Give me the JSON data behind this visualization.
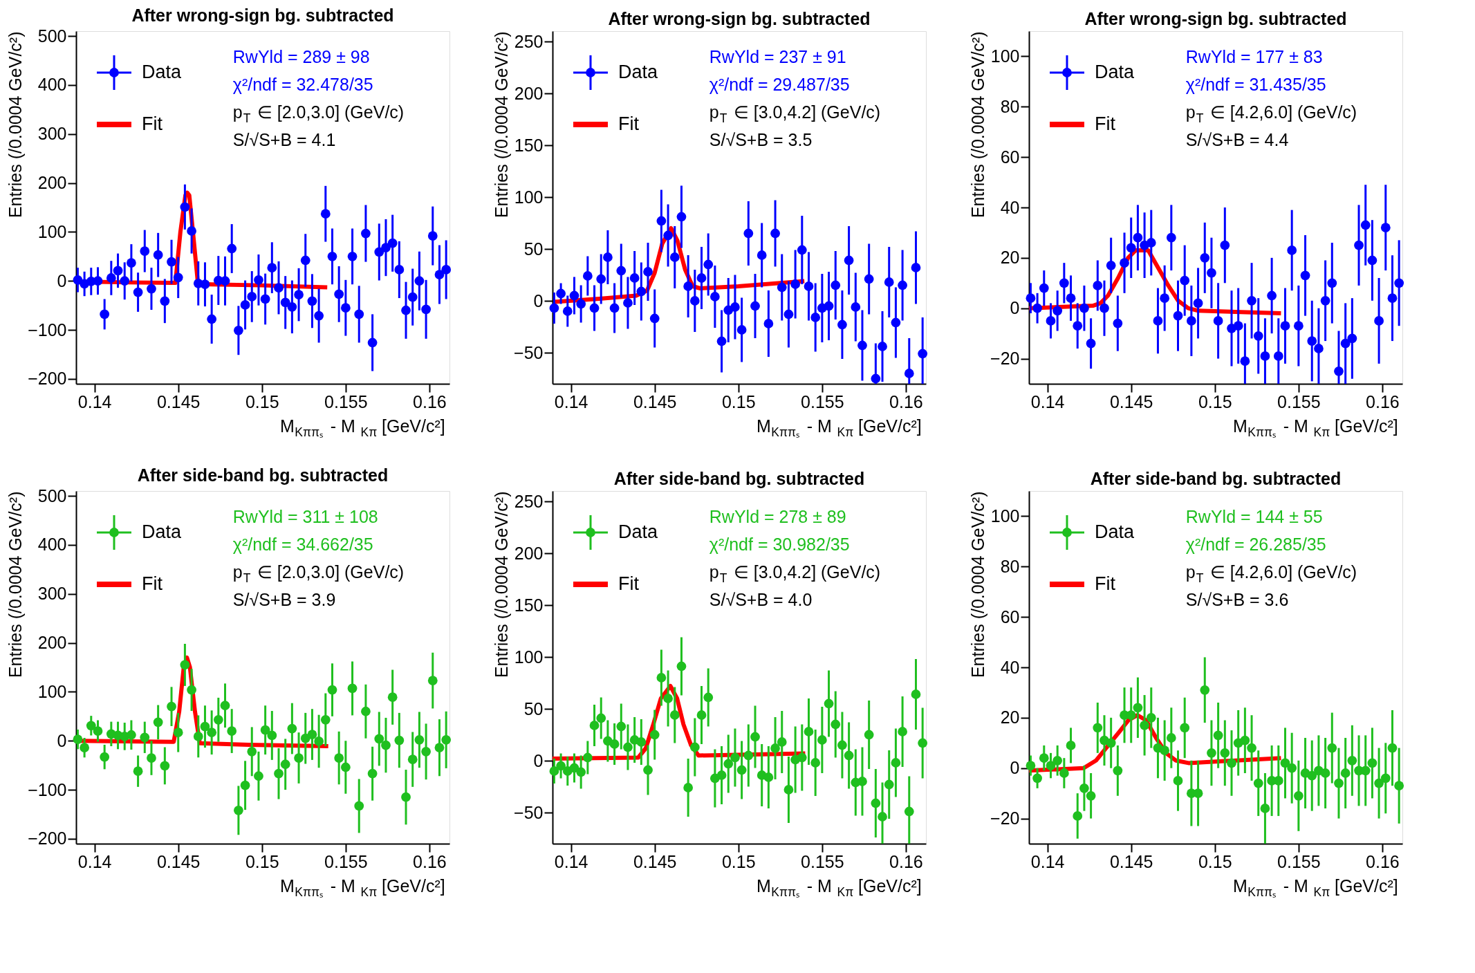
{
  "chart_data": [
    {
      "type": "scatter",
      "title": "After wrong-sign bg. subtracted",
      "xlabel": "M$_{Kππₛ}$ - M$_{Kπ}$ [GeV/c²]",
      "ylabel": "Entries (/0.0004 GeV/c²)",
      "legend": "top left",
      "grid": false,
      "xlim": [
        0.1389,
        0.1612
      ],
      "ylim": [
        -210,
        510
      ],
      "xticks": [
        0.14,
        0.145,
        0.15,
        0.155,
        0.16
      ],
      "yticks": [
        -200,
        -100,
        0,
        100,
        200,
        300,
        400,
        500
      ],
      "x": [
        0.139,
        0.1394,
        0.1398,
        0.1402,
        0.1406,
        0.141,
        0.1414,
        0.1418,
        0.1422,
        0.1426,
        0.143,
        0.1434,
        0.1438,
        0.1442,
        0.1446,
        0.145,
        0.1454,
        0.1458,
        0.1462,
        0.1466,
        0.147,
        0.1474,
        0.1478,
        0.1482,
        0.1486,
        0.149,
        0.1494,
        0.1498,
        0.1502,
        0.1506,
        0.151,
        0.1514,
        0.1518,
        0.1522,
        0.1526,
        0.153,
        0.1534,
        0.1538,
        0.1542,
        0.1546,
        0.155,
        0.1554,
        0.1558,
        0.1562,
        0.1566,
        0.157,
        0.1574,
        0.1578,
        0.1582,
        0.1586,
        0.159,
        0.1594,
        0.1598,
        0.1602,
        0.1606,
        0.161
      ],
      "series": [
        {
          "name": "Data",
          "type": "scatter",
          "marker": "circle",
          "color": "#0000ff",
          "values": [
            2,
            -6,
            -1,
            0,
            -68,
            6,
            21,
            0,
            37,
            -23,
            61,
            -16,
            53,
            -41,
            39,
            7,
            151,
            102,
            -5,
            -7,
            -78,
            1,
            0,
            66,
            -101,
            -49,
            -32,
            2,
            -37,
            27,
            -14,
            -44,
            -53,
            -28,
            42,
            -41,
            -71,
            137,
            50,
            -27,
            -55,
            50,
            -68,
            97,
            -126,
            59,
            68,
            77,
            23,
            -60,
            -33,
            0,
            -58,
            92,
            13,
            23
          ],
          "errors": [
            25,
            25,
            28,
            28,
            31,
            35,
            35,
            38,
            38,
            40,
            43,
            43,
            45,
            45,
            45,
            42,
            46,
            46,
            45,
            45,
            50,
            50,
            50,
            50,
            50,
            50,
            52,
            52,
            52,
            52,
            54,
            54,
            54,
            54,
            54,
            55,
            55,
            57,
            57,
            57,
            57,
            57,
            58,
            58,
            58,
            58,
            58,
            58,
            58,
            58,
            58,
            60,
            60,
            60,
            60,
            60
          ]
        },
        {
          "name": "Fit",
          "type": "line",
          "color": "#ff0000",
          "x": [
            0.1389,
            0.142,
            0.1446,
            0.14483,
            0.14513,
            0.14543,
            0.14554,
            0.14566,
            0.14588,
            0.14618,
            0.147,
            0.15,
            0.1539
          ],
          "values": [
            -1,
            -3,
            -4,
            -4,
            100,
            175,
            180,
            175,
            100,
            -6,
            -7,
            -9,
            -13
          ]
        }
      ],
      "annotations": [
        "RwYld = 289 ± 98",
        "χ²/ndf = 32.478/35",
        "p$_{T}$ ∈ [2.0,3.0] (GeV/c)",
        "S/√S+B = 4.1"
      ]
    },
    {
      "type": "scatter",
      "title": "After wrong-sign bg. subtracted",
      "xlabel": "M$_{Kππₛ}$ - M$_{Kπ}$ [GeV/c²]",
      "ylabel": "Entries (/0.0004 GeV/c²)",
      "legend": "top left",
      "grid": false,
      "xlim": [
        0.1389,
        0.1612
      ],
      "ylim": [
        -80,
        260
      ],
      "xticks": [
        0.14,
        0.145,
        0.15,
        0.155,
        0.16
      ],
      "yticks": [
        -50,
        0,
        50,
        100,
        150,
        200,
        250
      ],
      "x": [
        0.139,
        0.1394,
        0.1398,
        0.1402,
        0.1406,
        0.141,
        0.1414,
        0.1418,
        0.1422,
        0.1426,
        0.143,
        0.1434,
        0.1438,
        0.1442,
        0.1446,
        0.145,
        0.1454,
        0.1458,
        0.1462,
        0.1466,
        0.147,
        0.1474,
        0.1478,
        0.1482,
        0.1486,
        0.149,
        0.1494,
        0.1498,
        0.1502,
        0.1506,
        0.151,
        0.1514,
        0.1518,
        0.1522,
        0.1526,
        0.153,
        0.1534,
        0.1538,
        0.1542,
        0.1546,
        0.155,
        0.1554,
        0.1558,
        0.1562,
        0.1566,
        0.157,
        0.1574,
        0.1578,
        0.1582,
        0.1586,
        0.159,
        0.1594,
        0.1598,
        0.1602,
        0.1606,
        0.161
      ],
      "series": [
        {
          "name": "Data",
          "type": "scatter",
          "marker": "circle",
          "color": "#0000ff",
          "values": [
            -7,
            7,
            -10,
            5,
            -3,
            24,
            -7,
            21,
            42,
            -7,
            29,
            -2,
            22,
            9,
            28,
            -17,
            77,
            63,
            42,
            81,
            14,
            0,
            22,
            35,
            4,
            -39,
            -9,
            -6,
            -28,
            65,
            -5,
            44,
            -22,
            65,
            13,
            -13,
            16,
            49,
            14,
            -16,
            -7,
            -5,
            15,
            -23,
            39,
            -6,
            -43,
            21,
            -75,
            -44,
            18,
            -21,
            15,
            -70,
            32,
            -51
          ],
          "errors": [
            15,
            10,
            15,
            18,
            18,
            19,
            22,
            24,
            26,
            24,
            26,
            25,
            26,
            28,
            28,
            28,
            30,
            30,
            30,
            30,
            30,
            30,
            30,
            30,
            30,
            30,
            31,
            31,
            31,
            31,
            31,
            31,
            32,
            32,
            32,
            32,
            33,
            33,
            33,
            33,
            33,
            33,
            33,
            33,
            33,
            33,
            34,
            34,
            [
              -80,
              -41
            ],
            34,
            34,
            34,
            34,
            [
              -80,
              -36
            ],
            35,
            [
              -80,
              -16
            ]
          ]
        },
        {
          "name": "Fit",
          "type": "line",
          "color": "#ff0000",
          "x": [
            0.139,
            0.1417,
            0.1439,
            0.14455,
            0.145,
            0.14545,
            0.14598,
            0.14636,
            0.14682,
            0.14727,
            0.14773,
            0.15,
            0.15394
          ],
          "values": [
            -1,
            2,
            5,
            10,
            27,
            55,
            70,
            58,
            30,
            14,
            12,
            14,
            19
          ]
        }
      ],
      "annotations": [
        "RwYld = 237 ± 91",
        "χ²/ndf = 29.487/35",
        "p$_{T}$ ∈ [3.0,4.2] (GeV/c)",
        "S/√S+B = 3.5"
      ]
    },
    {
      "type": "scatter",
      "title": "After wrong-sign bg. subtracted",
      "xlabel": "M$_{Kππₛ}$ - M$_{Kπ}$ [GeV/c²]",
      "ylabel": "Entries (/0.0004 GeV/c²)",
      "legend": "top left",
      "grid": false,
      "xlim": [
        0.1389,
        0.1612
      ],
      "ylim": [
        -30,
        110
      ],
      "xticks": [
        0.14,
        0.145,
        0.15,
        0.155,
        0.16
      ],
      "yticks": [
        -20,
        0,
        20,
        40,
        60,
        80,
        100
      ],
      "x": [
        0.139,
        0.1394,
        0.1398,
        0.1402,
        0.1406,
        0.141,
        0.1414,
        0.1418,
        0.1422,
        0.1426,
        0.143,
        0.1434,
        0.1438,
        0.1442,
        0.1446,
        0.145,
        0.1454,
        0.1458,
        0.1462,
        0.1466,
        0.147,
        0.1474,
        0.1478,
        0.1482,
        0.1486,
        0.149,
        0.1494,
        0.1498,
        0.1502,
        0.1506,
        0.151,
        0.1514,
        0.1518,
        0.1522,
        0.1526,
        0.153,
        0.1534,
        0.1538,
        0.1542,
        0.1546,
        0.155,
        0.1554,
        0.1558,
        0.1562,
        0.1566,
        0.157,
        0.1574,
        0.1578,
        0.1582,
        0.1586,
        0.159,
        0.1594,
        0.1598,
        0.1602,
        0.1606,
        0.161
      ],
      "series": [
        {
          "name": "Data",
          "type": "scatter",
          "marker": "circle",
          "color": "#0000ff",
          "values": [
            4,
            0,
            8,
            -5,
            -1,
            10,
            4,
            -7,
            0,
            -14,
            9,
            0,
            17,
            -6,
            18,
            24,
            28,
            25,
            26,
            -5,
            4,
            28,
            -3,
            11,
            -5,
            2,
            20,
            14,
            -5,
            25,
            -8,
            -7,
            -21,
            3,
            -11,
            -19,
            5,
            -19,
            -7,
            23,
            -7,
            13,
            -13,
            -16,
            3,
            10,
            -25,
            -14,
            -12,
            25,
            33,
            19,
            -5,
            32,
            4,
            10
          ],
          "errors": [
            6,
            6,
            7,
            7,
            8,
            8,
            9,
            9,
            9,
            10,
            10,
            11,
            11,
            11,
            12,
            12,
            13,
            13,
            13,
            13,
            13,
            13,
            14,
            14,
            14,
            14,
            14,
            14,
            15,
            15,
            15,
            15,
            [
              -30,
              -6
            ],
            15,
            15,
            [
              -30,
              -4
            ],
            15,
            [
              -30,
              -4
            ],
            15,
            16,
            16,
            16,
            16,
            [
              -30,
              0
            ],
            16,
            16,
            [
              -30,
              -9
            ],
            16,
            16,
            16,
            16,
            16,
            17,
            17,
            17,
            17
          ]
        },
        {
          "name": "Fit",
          "type": "line",
          "color": "#ff0000",
          "x": [
            0.1389,
            0.14272,
            0.14317,
            0.14362,
            0.14422,
            0.14482,
            0.14527,
            0.14602,
            0.14662,
            0.14722,
            0.14781,
            0.14841,
            0.14901,
            0.15395
          ],
          "values": [
            0,
            1,
            2,
            5,
            12,
            20,
            23,
            23,
            16,
            9,
            3,
            0,
            -1,
            -2
          ]
        }
      ],
      "annotations": [
        "RwYld = 177 ± 83",
        "χ²/ndf = 31.435/35",
        "p$_{T}$ ∈ [4.2,6.0] (GeV/c)",
        "S/√S+B = 4.4"
      ]
    },
    {
      "type": "scatter",
      "title": "After side-band bg. subtracted",
      "xlabel": "M$_{Kππₛ}$ - M$_{Kπ}$ [GeV/c²]",
      "ylabel": "Entries (/0.0004 GeV/c²)",
      "legend": "top left",
      "grid": false,
      "xlim": [
        0.1389,
        0.1612
      ],
      "ylim": [
        -210,
        510
      ],
      "xticks": [
        0.14,
        0.145,
        0.15,
        0.155,
        0.16
      ],
      "yticks": [
        -200,
        -100,
        0,
        100,
        200,
        300,
        400,
        500
      ],
      "x": [
        0.139,
        0.1394,
        0.1398,
        0.1402,
        0.1406,
        0.141,
        0.1414,
        0.1418,
        0.1422,
        0.1426,
        0.143,
        0.1434,
        0.1438,
        0.1442,
        0.1446,
        0.145,
        0.1454,
        0.1458,
        0.1462,
        0.1466,
        0.147,
        0.1474,
        0.1478,
        0.1482,
        0.1486,
        0.149,
        0.1494,
        0.1498,
        0.1502,
        0.1506,
        0.151,
        0.1514,
        0.1518,
        0.1522,
        0.1526,
        0.153,
        0.1534,
        0.1538,
        0.1542,
        0.1546,
        0.155,
        0.1554,
        0.1558,
        0.1562,
        0.1566,
        0.157,
        0.1574,
        0.1578,
        0.1582,
        0.1586,
        0.159,
        0.1594,
        0.1598,
        0.1602,
        0.1606,
        0.161
      ],
      "series": [
        {
          "name": "Data",
          "type": "scatter",
          "marker": "circle",
          "color": "#1fbf1f",
          "values": [
            3,
            -14,
            31,
            20,
            -33,
            14,
            11,
            9,
            12,
            -62,
            7,
            -35,
            38,
            -51,
            70,
            17,
            155,
            104,
            9,
            29,
            17,
            43,
            72,
            20,
            -142,
            -91,
            -22,
            -72,
            22,
            11,
            -67,
            -48,
            25,
            -35,
            5,
            13,
            -1,
            43,
            104,
            -35,
            -54,
            107,
            -133,
            60,
            -67,
            4,
            -9,
            89,
            1,
            -115,
            -38,
            2,
            -22,
            123,
            -14,
            2
          ],
          "errors": [
            20,
            20,
            20,
            22,
            25,
            25,
            28,
            28,
            30,
            32,
            32,
            35,
            35,
            38,
            40,
            40,
            43,
            43,
            43,
            43,
            45,
            45,
            45,
            45,
            50,
            50,
            50,
            50,
            50,
            50,
            52,
            52,
            52,
            52,
            52,
            52,
            54,
            54,
            54,
            54,
            54,
            55,
            55,
            55,
            55,
            55,
            56,
            56,
            56,
            56,
            56,
            57,
            57,
            57,
            58,
            58
          ]
        },
        {
          "name": "Fit",
          "type": "line",
          "color": "#ff0000",
          "x": [
            0.1389,
            0.14473,
            0.14506,
            0.14533,
            0.14552,
            0.1457,
            0.146,
            0.14629,
            0.1492,
            0.15396
          ],
          "values": [
            0,
            -2,
            60,
            150,
            170,
            150,
            60,
            -5,
            -8,
            -11
          ]
        }
      ],
      "annotations": [
        "RwYld = 311 ± 108",
        "χ²/ndf = 34.662/35",
        "p$_{T}$ ∈ [2.0,3.0] (GeV/c)",
        "S/√S+B = 3.9"
      ]
    },
    {
      "type": "scatter",
      "title": "After side-band bg. subtracted",
      "xlabel": "M$_{Kππₛ}$ - M$_{Kπ}$ [GeV/c²]",
      "ylabel": "Entries (/0.0004 GeV/c²)",
      "legend": "top left",
      "grid": false,
      "xlim": [
        0.1389,
        0.1612
      ],
      "ylim": [
        -80,
        260
      ],
      "xticks": [
        0.14,
        0.145,
        0.15,
        0.155,
        0.16
      ],
      "yticks": [
        -50,
        0,
        50,
        100,
        150,
        200,
        250
      ],
      "x": [
        0.139,
        0.1394,
        0.1398,
        0.1402,
        0.1406,
        0.141,
        0.1414,
        0.1418,
        0.1422,
        0.1426,
        0.143,
        0.1434,
        0.1438,
        0.1442,
        0.1446,
        0.145,
        0.1454,
        0.1458,
        0.1462,
        0.1466,
        0.147,
        0.1474,
        0.1478,
        0.1482,
        0.1486,
        0.149,
        0.1494,
        0.1498,
        0.1502,
        0.1506,
        0.151,
        0.1514,
        0.1518,
        0.1522,
        0.1526,
        0.153,
        0.1534,
        0.1538,
        0.1542,
        0.1546,
        0.155,
        0.1554,
        0.1558,
        0.1562,
        0.1566,
        0.157,
        0.1574,
        0.1578,
        0.1582,
        0.1586,
        0.159,
        0.1594,
        0.1598,
        0.1602,
        0.1606,
        0.161
      ],
      "series": [
        {
          "name": "Data",
          "type": "scatter",
          "marker": "circle",
          "color": "#1fbf1f",
          "values": [
            -10,
            -5,
            -10,
            -7,
            -11,
            3,
            34,
            41,
            19,
            16,
            33,
            13,
            20,
            18,
            -9,
            25,
            80,
            60,
            44,
            91,
            -26,
            13,
            44,
            61,
            -17,
            -14,
            -3,
            3,
            -9,
            5,
            23,
            -14,
            -16,
            12,
            18,
            -28,
            1,
            3,
            28,
            -2,
            20,
            55,
            35,
            15,
            5,
            -21,
            -20,
            25,
            -41,
            -54,
            -23,
            -2,
            28,
            -49,
            64,
            17
          ],
          "errors": [
            12,
            12,
            14,
            14,
            16,
            16,
            20,
            20,
            20,
            20,
            22,
            22,
            22,
            22,
            24,
            24,
            27,
            27,
            27,
            28,
            28,
            28,
            28,
            28,
            28,
            28,
            28,
            28,
            28,
            30,
            30,
            30,
            30,
            30,
            30,
            32,
            32,
            32,
            32,
            32,
            32,
            32,
            32,
            32,
            32,
            32,
            33,
            33,
            33,
            [
              -80,
              -21
            ],
            33,
            33,
            34,
            [
              -80,
              -15
            ],
            34,
            34
          ]
        },
        {
          "name": "Fit",
          "type": "line",
          "color": "#ff0000",
          "x": [
            0.1389,
            0.14402,
            0.14447,
            0.14492,
            0.14537,
            0.14594,
            0.14634,
            0.14672,
            0.14717,
            0.14762,
            0.15399
          ],
          "values": [
            2,
            3,
            12,
            35,
            60,
            72,
            60,
            35,
            15,
            5,
            7
          ]
        }
      ],
      "annotations": [
        "RwYld = 278 ± 89",
        "χ²/ndf = 30.982/35",
        "p$_{T}$ ∈ [3.0,4.2] (GeV/c)",
        "S/√S+B = 4.0"
      ]
    },
    {
      "type": "scatter",
      "title": "After side-band bg. subtracted",
      "xlabel": "M$_{Kππₛ}$ - M$_{Kπ}$ [GeV/c²]",
      "ylabel": "Entries (/0.0004 GeV/c²)",
      "legend": "top left",
      "grid": false,
      "xlim": [
        0.1389,
        0.1612
      ],
      "ylim": [
        -30,
        110
      ],
      "xticks": [
        0.14,
        0.145,
        0.15,
        0.155,
        0.16
      ],
      "yticks": [
        -20,
        0,
        20,
        40,
        60,
        80,
        100
      ],
      "x": [
        0.139,
        0.1394,
        0.1398,
        0.1402,
        0.1406,
        0.141,
        0.1414,
        0.1418,
        0.1422,
        0.1426,
        0.143,
        0.1434,
        0.1438,
        0.1442,
        0.1446,
        0.145,
        0.1454,
        0.1458,
        0.1462,
        0.1466,
        0.147,
        0.1474,
        0.1478,
        0.1482,
        0.1486,
        0.149,
        0.1494,
        0.1498,
        0.1502,
        0.1506,
        0.151,
        0.1514,
        0.1518,
        0.1522,
        0.1526,
        0.153,
        0.1534,
        0.1538,
        0.1542,
        0.1546,
        0.155,
        0.1554,
        0.1558,
        0.1562,
        0.1566,
        0.157,
        0.1574,
        0.1578,
        0.1582,
        0.1586,
        0.159,
        0.1594,
        0.1598,
        0.1602,
        0.1606,
        0.161
      ],
      "series": [
        {
          "name": "Data",
          "type": "scatter",
          "marker": "circle",
          "color": "#1fbf1f",
          "values": [
            1,
            -4,
            4,
            1,
            3,
            -2,
            9,
            -19,
            -8,
            -11,
            16,
            11,
            10,
            -1,
            21,
            21,
            24,
            17,
            20,
            8,
            7,
            12,
            -5,
            16,
            -10,
            -10,
            31,
            6,
            13,
            6,
            2,
            10,
            11,
            8,
            -6,
            -16,
            -5,
            -5,
            2,
            0,
            -11,
            -2,
            -3,
            -1,
            -2,
            8,
            -6,
            -2,
            3,
            -1,
            -1,
            2,
            -6,
            -4,
            8,
            -7
          ],
          "errors": [
            4,
            4,
            5,
            5,
            6,
            6,
            7,
            9,
            9,
            9,
            10,
            10,
            10,
            10,
            11,
            11,
            12,
            12,
            12,
            12,
            12,
            12,
            12,
            12,
            13,
            13,
            13,
            13,
            13,
            13,
            13,
            13,
            13,
            13,
            13,
            14,
            14,
            14,
            14,
            14,
            14,
            14,
            14,
            14,
            14,
            14,
            14,
            14,
            14,
            14,
            14,
            14,
            14,
            14,
            15,
            15
          ]
        },
        {
          "name": "Fit",
          "type": "line",
          "color": "#ff0000",
          "x": [
            0.1389,
            0.14216,
            0.1429,
            0.14351,
            0.14425,
            0.14484,
            0.14537,
            0.14589,
            0.14649,
            0.14708,
            0.14768,
            0.14843,
            0.15395
          ],
          "values": [
            -1,
            0,
            3,
            8,
            14,
            19,
            21,
            19,
            12,
            6,
            3,
            2,
            4
          ]
        }
      ],
      "annotations": [
        "RwYld = 144 ± 55",
        "χ²/ndf = 26.285/35",
        "p$_{T}$ ∈ [4.2,6.0] (GeV/c)",
        "S/√S+B = 3.6"
      ]
    }
  ]
}
